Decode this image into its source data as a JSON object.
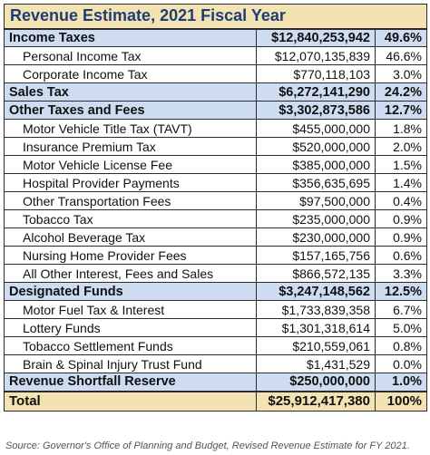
{
  "chart_data": {
    "type": "table",
    "title": "Revenue Estimate, 2021 Fiscal Year",
    "columns": [
      "",
      "",
      ""
    ],
    "rows": [
      {
        "kind": "category",
        "label": "Income Taxes",
        "amount": "$12,840,253,942",
        "percent": "49.6%"
      },
      {
        "kind": "item",
        "label": "Personal Income Tax",
        "amount": "$12,070,135,839",
        "percent": "46.6%"
      },
      {
        "kind": "item",
        "label": "Corporate Income Tax",
        "amount": "$770,118,103",
        "percent": "3.0%"
      },
      {
        "kind": "category",
        "label": "Sales Tax",
        "amount": "$6,272,141,290",
        "percent": "24.2%"
      },
      {
        "kind": "category",
        "label": "Other Taxes and Fees",
        "amount": "$3,302,873,586",
        "percent": "12.7%"
      },
      {
        "kind": "item",
        "label": "Motor Vehicle Title Tax (TAVT)",
        "amount": "$455,000,000",
        "percent": "1.8%"
      },
      {
        "kind": "item",
        "label": "Insurance Premium Tax",
        "amount": "$520,000,000",
        "percent": "2.0%"
      },
      {
        "kind": "item",
        "label": "Motor Vehicle License Fee",
        "amount": "$385,000,000",
        "percent": "1.5%"
      },
      {
        "kind": "item",
        "label": "Hospital Provider Payments",
        "amount": "$356,635,695",
        "percent": "1.4%"
      },
      {
        "kind": "item",
        "label": "Other Transportation Fees",
        "amount": "$97,500,000",
        "percent": "0.4%"
      },
      {
        "kind": "item",
        "label": "Tobacco Tax",
        "amount": "$235,000,000",
        "percent": "0.9%"
      },
      {
        "kind": "item",
        "label": "Alcohol Beverage Tax",
        "amount": "$230,000,000",
        "percent": "0.9%"
      },
      {
        "kind": "item",
        "label": "Nursing Home Provider Fees",
        "amount": "$157,165,756",
        "percent": "0.6%"
      },
      {
        "kind": "item",
        "label": "All Other Interest, Fees and Sales",
        "amount": "$866,572,135",
        "percent": "3.3%"
      },
      {
        "kind": "category",
        "label": "Designated Funds",
        "amount": "$3,247,148,562",
        "percent": "12.5%"
      },
      {
        "kind": "item",
        "label": "Motor Fuel Tax & Interest",
        "amount": "$1,733,839,358",
        "percent": "6.7%"
      },
      {
        "kind": "item",
        "label": "Lottery Funds",
        "amount": "$1,301,318,614",
        "percent": "5.0%"
      },
      {
        "kind": "item",
        "label": "Tobacco Settlement Funds",
        "amount": "$210,559,061",
        "percent": "0.8%"
      },
      {
        "kind": "item",
        "label": "Brain & Spinal Injury Trust Fund",
        "amount": "$1,431,529",
        "percent": "0.0%"
      },
      {
        "kind": "category",
        "label": "Revenue Shortfall Reserve",
        "amount": "$250,000,000",
        "percent": "1.0%"
      }
    ],
    "total": {
      "label": "Total",
      "amount": "$25,912,417,380",
      "percent": "100%"
    },
    "source": "Source: Governor's Office of Planning and Budget, Revised Revenue Estimate for FY 2021."
  },
  "colors": {
    "title_bg": "#f3e3b2",
    "title_text": "#1d3d78",
    "category_bg": "#cddcf1",
    "total_bg": "#f3e3b2",
    "border": "#2b2b2b"
  }
}
